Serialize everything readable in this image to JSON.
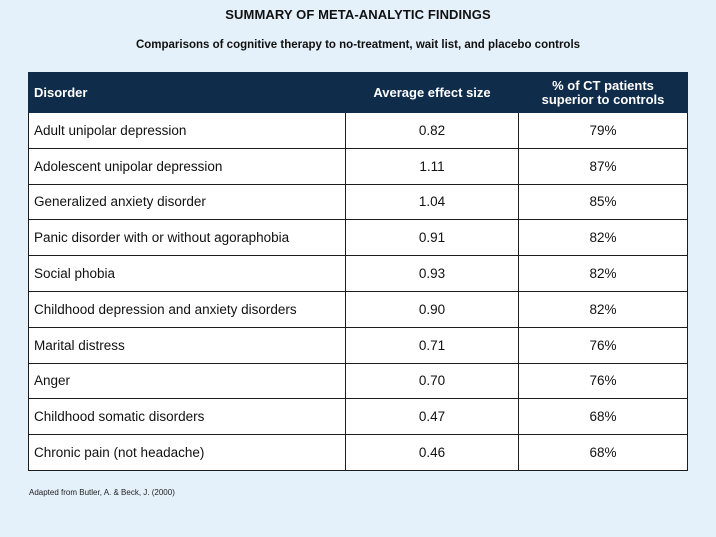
{
  "title": "SUMMARY OF META-ANALYTIC FINDINGS",
  "subtitle": "Comparisons of cognitive therapy to no-treatment, wait list, and placebo controls",
  "table": {
    "headers": {
      "disorder": "Disorder",
      "effect_size": "Average effect size",
      "superior_line1": "% of CT patients",
      "superior_line2": "superior to controls"
    },
    "rows": [
      {
        "disorder": "Adult unipolar depression",
        "effect_size": "0.82",
        "superior": "79%"
      },
      {
        "disorder": "Adolescent unipolar depression",
        "effect_size": "1.11",
        "superior": "87%"
      },
      {
        "disorder": "Generalized anxiety disorder",
        "effect_size": "1.04",
        "superior": "85%"
      },
      {
        "disorder": "Panic disorder with or without agoraphobia",
        "effect_size": "0.91",
        "superior": "82%"
      },
      {
        "disorder": "Social phobia",
        "effect_size": "0.93",
        "superior": "82%"
      },
      {
        "disorder": "Childhood depression and anxiety disorders",
        "effect_size": "0.90",
        "superior": "82%"
      },
      {
        "disorder": "Marital distress",
        "effect_size": "0.71",
        "superior": "76%"
      },
      {
        "disorder": "Anger",
        "effect_size": "0.70",
        "superior": "76%"
      },
      {
        "disorder": "Childhood somatic disorders",
        "effect_size": "0.47",
        "superior": "68%"
      },
      {
        "disorder": "Chronic pain (not headache)",
        "effect_size": "0.46",
        "superior": "68%"
      }
    ]
  },
  "footnote": "Adapted from Butler, A. & Beck, J. (2000)",
  "colors": {
    "background": "#e4f0fa",
    "header_background": "#0f2c4a",
    "header_text": "#ffffff"
  }
}
